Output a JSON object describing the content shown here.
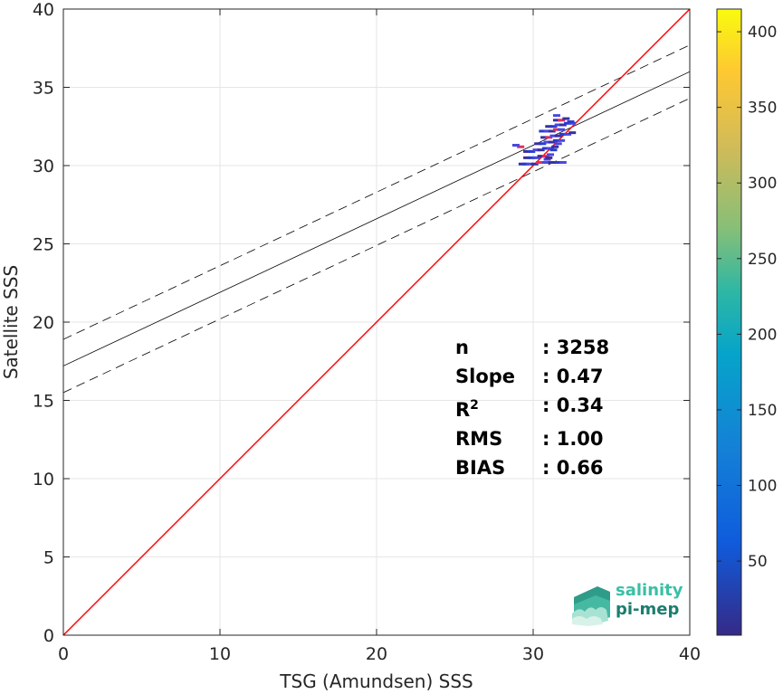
{
  "chart_data": {
    "type": "scatter",
    "subtype": "density-scatter",
    "xlabel": "TSG (Amundsen) SSS",
    "ylabel": "Satellite SSS",
    "xlim": [
      0,
      40
    ],
    "ylim": [
      0,
      40
    ],
    "xticks": [
      0,
      10,
      20,
      30,
      40
    ],
    "yticks": [
      0,
      5,
      10,
      15,
      20,
      25,
      30,
      35,
      40
    ],
    "grid": true,
    "identity_line": {
      "color": "#ff0000",
      "from": [
        0,
        0
      ],
      "to": [
        40,
        40
      ]
    },
    "regression": {
      "slope": 0.47,
      "intercept": 17.2,
      "band_offset": 1.7,
      "color": "#000000"
    },
    "points": [
      [
        29.3,
        30.1
      ],
      [
        29.5,
        30.1
      ],
      [
        29.8,
        30.1
      ],
      [
        30.1,
        30.1
      ],
      [
        30.4,
        30.2
      ],
      [
        30.8,
        30.2
      ],
      [
        31.2,
        30.2
      ],
      [
        31.6,
        30.2
      ],
      [
        31.9,
        30.2
      ],
      [
        29.6,
        30.5
      ],
      [
        29.9,
        30.5
      ],
      [
        30.2,
        30.5
      ],
      [
        30.5,
        30.6
      ],
      [
        30.8,
        30.6
      ],
      [
        31.1,
        30.7
      ],
      [
        29.6,
        30.9
      ],
      [
        29.9,
        30.9
      ],
      [
        30.2,
        31.0
      ],
      [
        30.5,
        31.0
      ],
      [
        30.8,
        31.1
      ],
      [
        31.1,
        31.1
      ],
      [
        31.4,
        31.2
      ],
      [
        29.2,
        31.2
      ],
      [
        28.9,
        31.3
      ],
      [
        30.3,
        31.4
      ],
      [
        30.6,
        31.4
      ],
      [
        30.9,
        31.5
      ],
      [
        31.2,
        31.5
      ],
      [
        31.5,
        31.6
      ],
      [
        31.8,
        31.6
      ],
      [
        30.7,
        31.8
      ],
      [
        31.0,
        31.8
      ],
      [
        31.3,
        31.9
      ],
      [
        31.6,
        31.9
      ],
      [
        31.9,
        32.0
      ],
      [
        32.2,
        32.0
      ],
      [
        32.5,
        32.1
      ],
      [
        30.6,
        32.2
      ],
      [
        30.9,
        32.2
      ],
      [
        31.2,
        32.2
      ],
      [
        31.5,
        32.3
      ],
      [
        31.8,
        32.3
      ],
      [
        31.0,
        32.5
      ],
      [
        31.3,
        32.5
      ],
      [
        31.6,
        32.6
      ],
      [
        31.9,
        32.6
      ],
      [
        32.2,
        32.7
      ],
      [
        32.5,
        32.7
      ],
      [
        31.5,
        32.9
      ],
      [
        31.8,
        32.9
      ],
      [
        31.5,
        33.2
      ],
      [
        32.1,
        33.0
      ],
      [
        32.4,
        32.8
      ],
      [
        30.9,
        30.4
      ],
      [
        31.0,
        30.5
      ],
      [
        31.3,
        31.0
      ],
      [
        31.6,
        31.4
      ]
    ],
    "colorbar": {
      "ticks": [
        50,
        100,
        150,
        200,
        250,
        300,
        350,
        400
      ],
      "min": 1,
      "max": 415,
      "colormap": "parula"
    },
    "stats": [
      {
        "key": "n",
        "sep": ": ",
        "value": "3258"
      },
      {
        "key": "Slope",
        "sep": ": ",
        "value": "0.47"
      },
      {
        "key": "R",
        "sup": "2",
        "sep": ": ",
        "value": "0.34"
      },
      {
        "key": "RMS",
        "sep": ": ",
        "value": "1.00"
      },
      {
        "key": "BIAS",
        "sep": ": ",
        "value": "0.66"
      }
    ]
  },
  "logo": {
    "line1": "salinity",
    "line2": "pi-mep"
  },
  "colors": {
    "identity": "#ff0000",
    "regression": "#000000",
    "grid": "#e6e6e6",
    "axis": "#262626",
    "logo_light": "#3bbfa6",
    "logo_dark": "#1d7d6e"
  }
}
